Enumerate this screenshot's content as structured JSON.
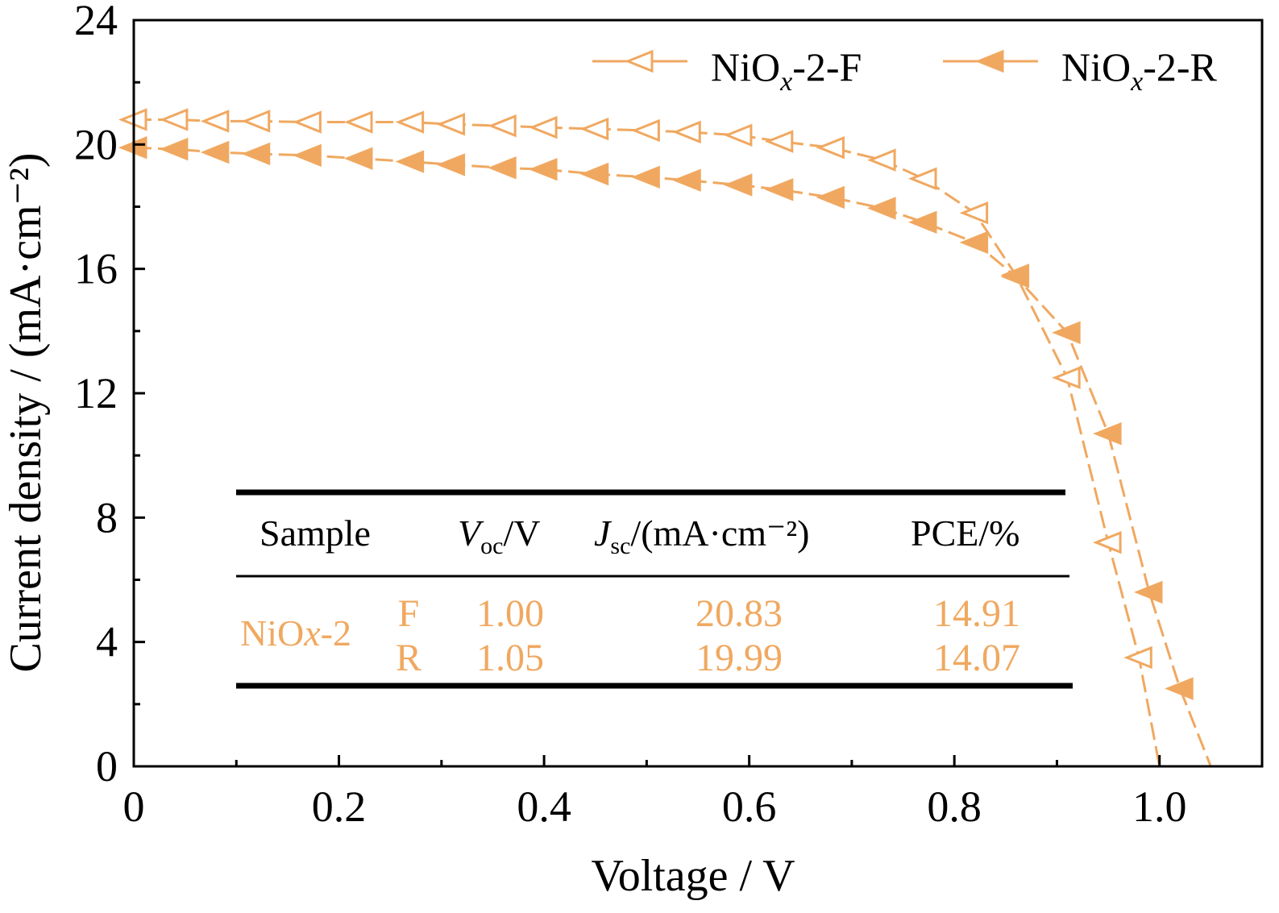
{
  "chart_data": {
    "type": "line",
    "xlabel": "Voltage / V",
    "ylabel": "Current density / (mA·cm⁻²)",
    "xlim": [
      0,
      1.1
    ],
    "ylim": [
      0,
      24
    ],
    "xticks": [
      "0",
      "0.2",
      "0.4",
      "0.6",
      "0.8",
      "1.0"
    ],
    "yticks": [
      "0",
      "4",
      "8",
      "12",
      "16",
      "20",
      "24"
    ],
    "grid": false,
    "legend_position": "top-right",
    "series": [
      {
        "name": "NiOx-2-F",
        "legend_base": "NiO",
        "legend_sub": "x",
        "legend_tail": "-2-F",
        "marker": "open-left-triangle",
        "line_style": "dashed",
        "color": "#f0a860",
        "x": [
          0,
          0.04,
          0.08,
          0.12,
          0.17,
          0.22,
          0.27,
          0.31,
          0.36,
          0.4,
          0.45,
          0.5,
          0.54,
          0.59,
          0.63,
          0.68,
          0.73,
          0.77,
          0.82,
          0.86,
          0.91,
          0.95,
          0.98,
          1.0
        ],
        "y": [
          20.8,
          20.8,
          20.75,
          20.75,
          20.72,
          20.72,
          20.72,
          20.65,
          20.6,
          20.55,
          20.5,
          20.45,
          20.4,
          20.3,
          20.1,
          19.9,
          19.5,
          18.9,
          17.8,
          15.8,
          12.5,
          7.2,
          3.5,
          0
        ]
      },
      {
        "name": "NiOx-2-R",
        "legend_base": "NiO",
        "legend_sub": "x",
        "legend_tail": "-2-R",
        "marker": "filled-left-triangle",
        "line_style": "dashed",
        "color": "#f0a860",
        "x": [
          0,
          0.04,
          0.08,
          0.12,
          0.17,
          0.22,
          0.27,
          0.31,
          0.36,
          0.4,
          0.45,
          0.5,
          0.54,
          0.59,
          0.63,
          0.68,
          0.73,
          0.77,
          0.82,
          0.86,
          0.91,
          0.95,
          0.99,
          1.02,
          1.05
        ],
        "y": [
          19.9,
          19.85,
          19.75,
          19.7,
          19.65,
          19.55,
          19.45,
          19.35,
          19.25,
          19.2,
          19.05,
          18.95,
          18.85,
          18.7,
          18.55,
          18.3,
          17.95,
          17.5,
          16.85,
          15.75,
          13.95,
          10.7,
          5.6,
          2.5,
          0
        ]
      }
    ],
    "table": {
      "headers": [
        {
          "base": "Sample",
          "sub": "",
          "tail": ""
        },
        {
          "base": "V",
          "sub": "oc",
          "tail": "/V"
        },
        {
          "base": "J",
          "sub": "sc",
          "tail": "/(mA·cm⁻²)"
        },
        {
          "base": "PCE/%",
          "sub": "",
          "tail": ""
        }
      ],
      "sample_base": "NiO",
      "sample_italic": "x",
      "sample_tail": "-2",
      "rows": [
        {
          "scan": "F",
          "voc": "1.00",
          "jsc": "20.83",
          "pce": "14.91"
        },
        {
          "scan": "R",
          "voc": "1.05",
          "jsc": "19.99",
          "pce": "14.07"
        }
      ]
    }
  }
}
